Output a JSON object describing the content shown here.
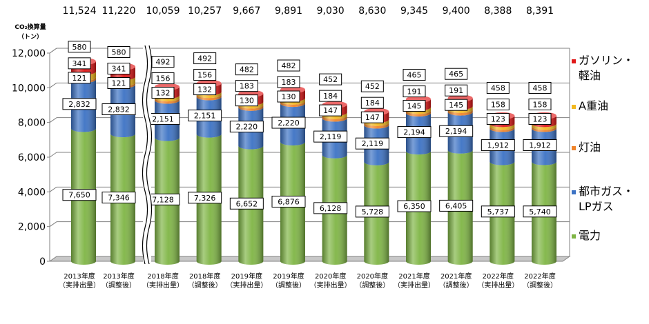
{
  "chart_data": {
    "type": "bar",
    "stacked": true,
    "style": "3d-cylinder",
    "title": "",
    "ylabel": "CO₂換算量（トン）",
    "ylabel_lines": [
      "CO₂換算量",
      "（トン）"
    ],
    "xlabel": "",
    "ylim": [
      0,
      12000
    ],
    "yticks": [
      0,
      2000,
      4000,
      6000,
      8000,
      10000,
      12000
    ],
    "ytick_labels": [
      "0",
      "2,000",
      "4,000",
      "6,000",
      "8,000",
      "10,000",
      "12,000"
    ],
    "grid": true,
    "legend_position": "right",
    "axis_break_after_index": 1,
    "categories": [
      [
        "2013年度",
        "（実排出量）"
      ],
      [
        "2013年度",
        "（調整後）"
      ],
      [
        "2018年度",
        "（実排出量）"
      ],
      [
        "2018年度",
        "（調整後）"
      ],
      [
        "2019年度",
        "（実排出量）"
      ],
      [
        "2019年度",
        "（調整後）"
      ],
      [
        "2020年度",
        "（実排出量）"
      ],
      [
        "2020年度",
        "（調整後）"
      ],
      [
        "2021年度",
        "（実排出量）"
      ],
      [
        "2021年度",
        "（調整後）"
      ],
      [
        "2022年度",
        "（実排出量）"
      ],
      [
        "2022年度",
        "（調整後）"
      ]
    ],
    "totals": [
      11524,
      11220,
      10059,
      10257,
      9667,
      9891,
      9030,
      8630,
      9345,
      9400,
      8388,
      8391
    ],
    "total_labels": [
      "11,524",
      "11,220",
      "10,059",
      "10,257",
      "9,667",
      "9,891",
      "9,030",
      "8,630",
      "9,345",
      "9,400",
      "8,388",
      "8,391"
    ],
    "series": [
      {
        "name": "電力",
        "name_lines": [
          "電力"
        ],
        "color": "#7fb545",
        "values": [
          7650,
          7346,
          7128,
          7326,
          6652,
          6876,
          6128,
          5728,
          6350,
          6405,
          5737,
          5740
        ],
        "labels": [
          "7,650",
          "7,346",
          "7,128",
          "7,326",
          "6,652",
          "6,876",
          "6,128",
          "5,728",
          "6,350",
          "6,405",
          "5,737",
          "5,740"
        ]
      },
      {
        "name": "都市ガス・LPガス",
        "name_lines": [
          "都市ガス・",
          "LPガス"
        ],
        "color": "#3c72c4",
        "values": [
          2832,
          2832,
          2151,
          2151,
          2220,
          2220,
          2119,
          2119,
          2194,
          2194,
          1912,
          1912
        ],
        "labels": [
          "2,832",
          "2,832",
          "2,151",
          "2,151",
          "2,220",
          "2,220",
          "2,119",
          "2,119",
          "2,194",
          "2,194",
          "1,912",
          "1,912"
        ]
      },
      {
        "name": "灯油",
        "name_lines": [
          "灯油"
        ],
        "color": "#f0842a",
        "values": [
          121,
          121,
          132,
          132,
          130,
          130,
          147,
          147,
          145,
          145,
          123,
          123
        ],
        "labels": [
          "121",
          "121",
          "132",
          "132",
          "130",
          "130",
          "147",
          "147",
          "145",
          "145",
          "123",
          "123"
        ]
      },
      {
        "name": "A重油",
        "name_lines": [
          "A重油"
        ],
        "color": "#f2b81f",
        "values": [
          341,
          341,
          156,
          156,
          183,
          183,
          184,
          184,
          191,
          191,
          158,
          158
        ],
        "labels": [
          "341",
          "341",
          "156",
          "156",
          "183",
          "183",
          "184",
          "184",
          "191",
          "191",
          "158",
          "158"
        ]
      },
      {
        "name": "ガソリン・軽油",
        "name_lines": [
          "ガソリン・",
          "軽油"
        ],
        "color": "#e01818",
        "values": [
          580,
          580,
          492,
          492,
          482,
          482,
          452,
          452,
          465,
          465,
          458,
          458
        ],
        "labels": [
          "580",
          "580",
          "492",
          "492",
          "482",
          "482",
          "452",
          "452",
          "465",
          "465",
          "458",
          "458"
        ]
      }
    ]
  }
}
